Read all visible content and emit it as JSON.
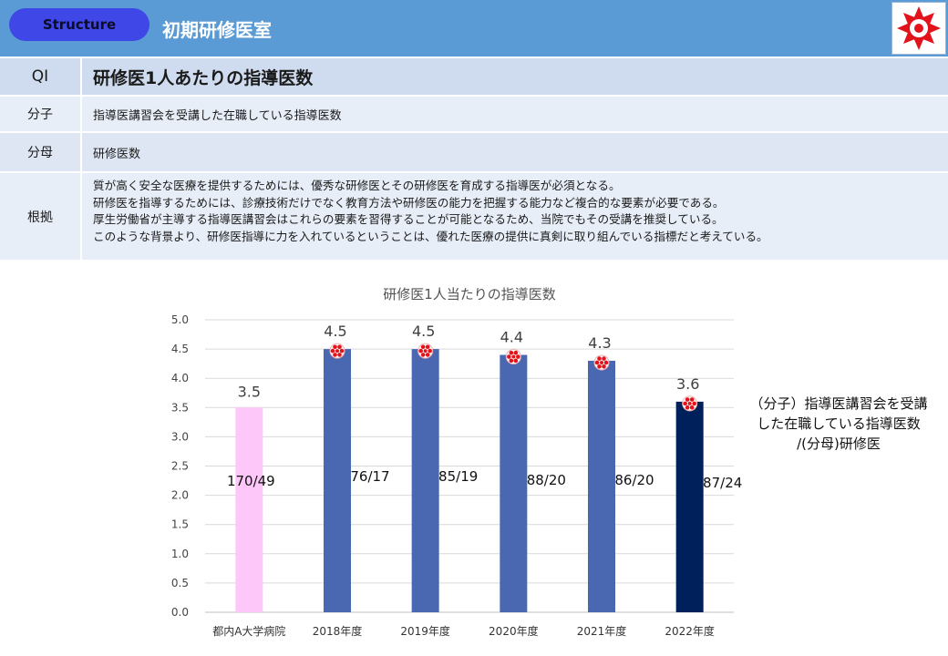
{
  "header": {
    "badge_label": "Structure",
    "title": "初期研修医室"
  },
  "table": {
    "qi_key": "QI",
    "qi_value": "研修医1人あたりの指導医数",
    "numerator_key": "分子",
    "numerator_value": "指導医講習会を受講した在職している指導医数",
    "denominator_key": "分母",
    "denominator_value": "研修医数",
    "basis_key": "根拠",
    "basis_lines": [
      "質が高く安全な医療を提供するためには、優秀な研修医とその研修医を育成する指導医が必須となる。",
      "研修医を指導するためには、診療技術だけでなく教育方法や研修医の能力を把握する能力など複合的な要素が必要である。",
      "厚生労働省が主導する指導医講習会はこれらの要素を習得することが可能となるため、当院でもその受講を推奨している。",
      "このような背景より、研修医指導に力を入れているということは、優れた医療の提供に真剣に取り組んでいる指標だと考えている。"
    ]
  },
  "side_note": "（分子）指導医講習会を受講した在職している指導医数 /(分母)研修医",
  "colors": {
    "header": "#5b9bd5",
    "badge": "#3f48e6",
    "bar_reference": "#fdc8f9",
    "bar_year": "#4a67b1",
    "bar_latest": "#00205b",
    "logo_red": "#e2131b"
  },
  "icons": {
    "logo": "hospital-flower-logo",
    "bar_marker": "flower-marker-icon"
  },
  "chart_data": {
    "type": "bar",
    "title": "研修医1人当たりの指導医数",
    "categories": [
      "都内A大学病院",
      "2018年度",
      "2019年度",
      "2020年度",
      "2021年度",
      "2022年度"
    ],
    "values": [
      3.5,
      4.5,
      4.5,
      4.4,
      4.3,
      3.6
    ],
    "value_labels": [
      "3.5",
      "4.5",
      "4.5",
      "4.4",
      "4.3",
      "3.6"
    ],
    "ratio_labels": [
      "170/49",
      "76/17",
      "85/19",
      "88/20",
      "86/20",
      "87/24"
    ],
    "yticks": [
      "5.0",
      "4.5",
      "4.0",
      "3.5",
      "3.0",
      "2.5",
      "2.0",
      "1.5",
      "1.0",
      "0.5",
      "0.0"
    ],
    "ylim": [
      0,
      5
    ],
    "grid": true,
    "legend": "none"
  }
}
